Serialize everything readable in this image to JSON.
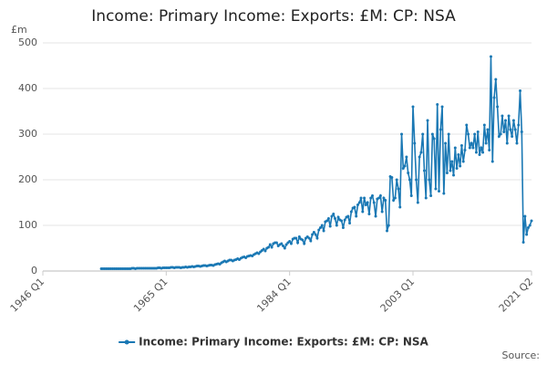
{
  "chart_data": {
    "type": "line",
    "title": "Income: Primary Income: Exports: £M: CP: NSA",
    "y_label": "£m",
    "source": "Source:",
    "legend_position": "bottom",
    "grid": true,
    "xlim": [
      "1946 Q1",
      "2021 Q2"
    ],
    "xticks": [
      "1946 Q1",
      "1965 Q1",
      "1984 Q1",
      "2003 Q1",
      "2021 Q2"
    ],
    "ylim": [
      0,
      500
    ],
    "yticks": [
      0,
      100,
      200,
      300,
      400,
      500
    ],
    "x": [
      "1955 Q1",
      "1955 Q2",
      "1955 Q3",
      "1955 Q4",
      "1956 Q1",
      "1956 Q2",
      "1956 Q3",
      "1956 Q4",
      "1957 Q1",
      "1957 Q2",
      "1957 Q3",
      "1957 Q4",
      "1958 Q1",
      "1958 Q2",
      "1958 Q3",
      "1958 Q4",
      "1959 Q1",
      "1959 Q2",
      "1959 Q3",
      "1959 Q4",
      "1960 Q1",
      "1960 Q2",
      "1960 Q3",
      "1960 Q4",
      "1961 Q1",
      "1961 Q2",
      "1961 Q3",
      "1961 Q4",
      "1962 Q1",
      "1962 Q2",
      "1962 Q3",
      "1962 Q4",
      "1963 Q1",
      "1963 Q2",
      "1963 Q3",
      "1963 Q4",
      "1964 Q1",
      "1964 Q2",
      "1964 Q3",
      "1964 Q4",
      "1965 Q1",
      "1965 Q2",
      "1965 Q3",
      "1965 Q4",
      "1966 Q1",
      "1966 Q2",
      "1966 Q3",
      "1966 Q4",
      "1967 Q1",
      "1967 Q2",
      "1967 Q3",
      "1967 Q4",
      "1968 Q1",
      "1968 Q2",
      "1968 Q3",
      "1968 Q4",
      "1969 Q1",
      "1969 Q2",
      "1969 Q3",
      "1969 Q4",
      "1970 Q1",
      "1970 Q2",
      "1970 Q3",
      "1970 Q4",
      "1971 Q1",
      "1971 Q2",
      "1971 Q3",
      "1971 Q4",
      "1972 Q1",
      "1972 Q2",
      "1972 Q3",
      "1972 Q4",
      "1973 Q1",
      "1973 Q2",
      "1973 Q3",
      "1973 Q4",
      "1974 Q1",
      "1974 Q2",
      "1974 Q3",
      "1974 Q4",
      "1975 Q1",
      "1975 Q2",
      "1975 Q3",
      "1975 Q4",
      "1976 Q1",
      "1976 Q2",
      "1976 Q3",
      "1976 Q4",
      "1977 Q1",
      "1977 Q2",
      "1977 Q3",
      "1977 Q4",
      "1978 Q1",
      "1978 Q2",
      "1978 Q3",
      "1978 Q4",
      "1979 Q1",
      "1979 Q2",
      "1979 Q3",
      "1979 Q4",
      "1980 Q1",
      "1980 Q2",
      "1980 Q3",
      "1980 Q4",
      "1981 Q1",
      "1981 Q2",
      "1981 Q3",
      "1981 Q4",
      "1982 Q1",
      "1982 Q2",
      "1982 Q3",
      "1982 Q4",
      "1983 Q1",
      "1983 Q2",
      "1983 Q3",
      "1983 Q4",
      "1984 Q1",
      "1984 Q2",
      "1984 Q3",
      "1984 Q4",
      "1985 Q1",
      "1985 Q2",
      "1985 Q3",
      "1985 Q4",
      "1986 Q1",
      "1986 Q2",
      "1986 Q3",
      "1986 Q4",
      "1987 Q1",
      "1987 Q2",
      "1987 Q3",
      "1987 Q4",
      "1988 Q1",
      "1988 Q2",
      "1988 Q3",
      "1988 Q4",
      "1989 Q1",
      "1989 Q2",
      "1989 Q3",
      "1989 Q4",
      "1990 Q1",
      "1990 Q2",
      "1990 Q3",
      "1990 Q4",
      "1991 Q1",
      "1991 Q2",
      "1991 Q3",
      "1991 Q4",
      "1992 Q1",
      "1992 Q2",
      "1992 Q3",
      "1992 Q4",
      "1993 Q1",
      "1993 Q2",
      "1993 Q3",
      "1993 Q4",
      "1994 Q1",
      "1994 Q2",
      "1994 Q3",
      "1994 Q4",
      "1995 Q1",
      "1995 Q2",
      "1995 Q3",
      "1995 Q4",
      "1996 Q1",
      "1996 Q2",
      "1996 Q3",
      "1996 Q4",
      "1997 Q1",
      "1997 Q2",
      "1997 Q3",
      "1997 Q4",
      "1998 Q1",
      "1998 Q2",
      "1998 Q3",
      "1998 Q4",
      "1999 Q1",
      "1999 Q2",
      "1999 Q3",
      "1999 Q4",
      "2000 Q1",
      "2000 Q2",
      "2000 Q3",
      "2000 Q4",
      "2001 Q1",
      "2001 Q2",
      "2001 Q3",
      "2001 Q4",
      "2002 Q1",
      "2002 Q2",
      "2002 Q3",
      "2002 Q4",
      "2003 Q1",
      "2003 Q2",
      "2003 Q3",
      "2003 Q4",
      "2004 Q1",
      "2004 Q2",
      "2004 Q3",
      "2004 Q4",
      "2005 Q1",
      "2005 Q2",
      "2005 Q3",
      "2005 Q4",
      "2006 Q1",
      "2006 Q2",
      "2006 Q3",
      "2006 Q4",
      "2007 Q1",
      "2007 Q2",
      "2007 Q3",
      "2007 Q4",
      "2008 Q1",
      "2008 Q2",
      "2008 Q3",
      "2008 Q4",
      "2009 Q1",
      "2009 Q2",
      "2009 Q3",
      "2009 Q4",
      "2010 Q1",
      "2010 Q2",
      "2010 Q3",
      "2010 Q4",
      "2011 Q1",
      "2011 Q2",
      "2011 Q3",
      "2011 Q4",
      "2012 Q1",
      "2012 Q2",
      "2012 Q3",
      "2012 Q4",
      "2013 Q1",
      "2013 Q2",
      "2013 Q3",
      "2013 Q4",
      "2014 Q1",
      "2014 Q2",
      "2014 Q3",
      "2014 Q4",
      "2015 Q1",
      "2015 Q2",
      "2015 Q3",
      "2015 Q4",
      "2016 Q1",
      "2016 Q2",
      "2016 Q3",
      "2016 Q4",
      "2017 Q1",
      "2017 Q2",
      "2017 Q3",
      "2017 Q4",
      "2018 Q1",
      "2018 Q2",
      "2018 Q3",
      "2018 Q4",
      "2019 Q1",
      "2019 Q2",
      "2019 Q3",
      "2019 Q4",
      "2020 Q1",
      "2020 Q2",
      "2020 Q3",
      "2020 Q4",
      "2021 Q1",
      "2021 Q2"
    ],
    "series": [
      {
        "name": "Income: Primary Income: Exports: £M: CP: NSA",
        "color": "#1a78b4",
        "values": [
          5,
          5,
          5,
          5,
          5,
          5,
          5,
          5,
          5,
          5,
          5,
          5,
          5,
          5,
          5,
          5,
          5,
          5,
          5,
          6,
          6,
          5,
          6,
          6,
          6,
          6,
          6,
          6,
          6,
          6,
          6,
          6,
          6,
          6,
          6,
          7,
          7,
          6,
          7,
          7,
          7,
          7,
          7,
          8,
          8,
          7,
          8,
          8,
          8,
          7,
          8,
          8,
          9,
          8,
          9,
          9,
          10,
          9,
          10,
          11,
          11,
          10,
          11,
          12,
          12,
          11,
          12,
          13,
          13,
          12,
          14,
          15,
          16,
          15,
          18,
          20,
          22,
          20,
          22,
          24,
          24,
          22,
          24,
          25,
          27,
          25,
          28,
          30,
          31,
          29,
          32,
          33,
          34,
          33,
          36,
          38,
          40,
          38,
          42,
          45,
          48,
          44,
          50,
          52,
          58,
          52,
          60,
          62,
          62,
          55,
          58,
          60,
          55,
          50,
          58,
          62,
          65,
          60,
          70,
          72,
          72,
          62,
          75,
          70,
          68,
          60,
          72,
          75,
          72,
          66,
          80,
          85,
          80,
          72,
          90,
          95,
          100,
          88,
          108,
          110,
          115,
          98,
          120,
          125,
          115,
          100,
          118,
          112,
          110,
          95,
          112,
          118,
          120,
          105,
          130,
          138,
          140,
          120,
          145,
          150,
          160,
          130,
          160,
          145,
          150,
          125,
          160,
          165,
          150,
          120,
          158,
          160,
          165,
          130,
          160,
          155,
          88,
          100,
          207,
          205,
          155,
          160,
          200,
          180,
          140,
          300,
          225,
          230,
          250,
          215,
          200,
          165,
          360,
          280,
          200,
          150,
          250,
          260,
          300,
          220,
          160,
          330,
          200,
          165,
          300,
          290,
          180,
          365,
          175,
          310,
          360,
          170,
          280,
          215,
          300,
          220,
          240,
          210,
          270,
          225,
          255,
          230,
          275,
          240,
          265,
          320,
          300,
          270,
          280,
          270,
          300,
          260,
          305,
          255,
          270,
          260,
          320,
          280,
          310,
          265,
          470,
          240,
          380,
          420,
          360,
          295,
          300,
          340,
          305,
          330,
          280,
          340,
          310,
          295,
          330,
          310,
          280,
          320,
          395,
          305,
          63,
          120,
          80,
          95,
          100,
          110
        ]
      }
    ]
  }
}
